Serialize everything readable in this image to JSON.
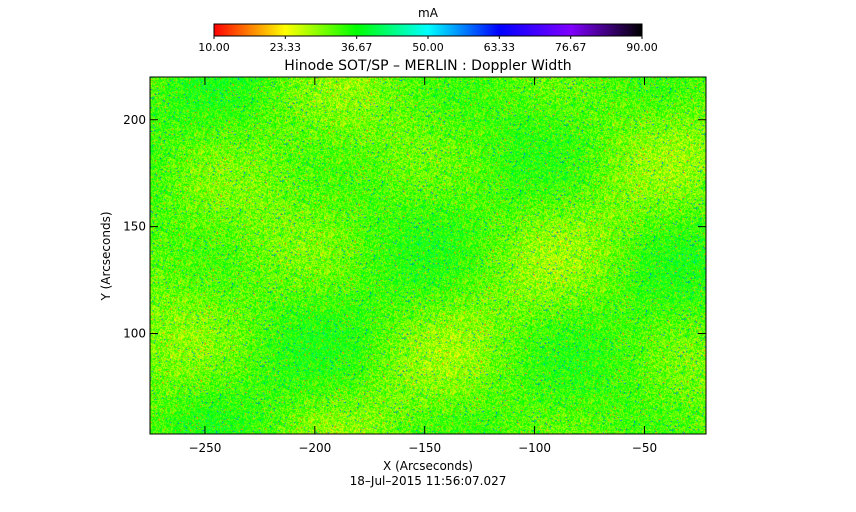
{
  "chart_data": {
    "type": "heatmap",
    "title": "Hinode SOT/SP – MERLIN : Doppler Width",
    "xlabel": "X (Arcseconds)",
    "ylabel": "Y (Arcseconds)",
    "footer": "18–Jul–2015 11:56:07.027",
    "xlim": [
      -275,
      -22
    ],
    "ylim": [
      53,
      220
    ],
    "x_ticks": [
      -250,
      -200,
      -150,
      -100,
      -50
    ],
    "y_ticks": [
      100,
      150,
      200
    ],
    "x_tick_labels": [
      "−250",
      "−200",
      "−150",
      "−100",
      "−50"
    ],
    "y_tick_labels": [
      "100",
      "150",
      "200"
    ],
    "colorbar": {
      "unit": "mA",
      "range": [
        10.0,
        90.0
      ],
      "tick_values": [
        10.0,
        23.33,
        36.67,
        50.0,
        63.33,
        76.67,
        90.0
      ],
      "tick_labels": [
        "10.00",
        "23.33",
        "36.67",
        "50.00",
        "63.33",
        "76.67",
        "90.00"
      ],
      "colormap": [
        "#ff0000",
        "#ffff00",
        "#00ff00",
        "#00ffff",
        "#0000ff",
        "#8000ff",
        "#000000"
      ]
    },
    "field_value_range": [
      15,
      60
    ],
    "field_dominant_range": [
      20,
      45
    ]
  }
}
